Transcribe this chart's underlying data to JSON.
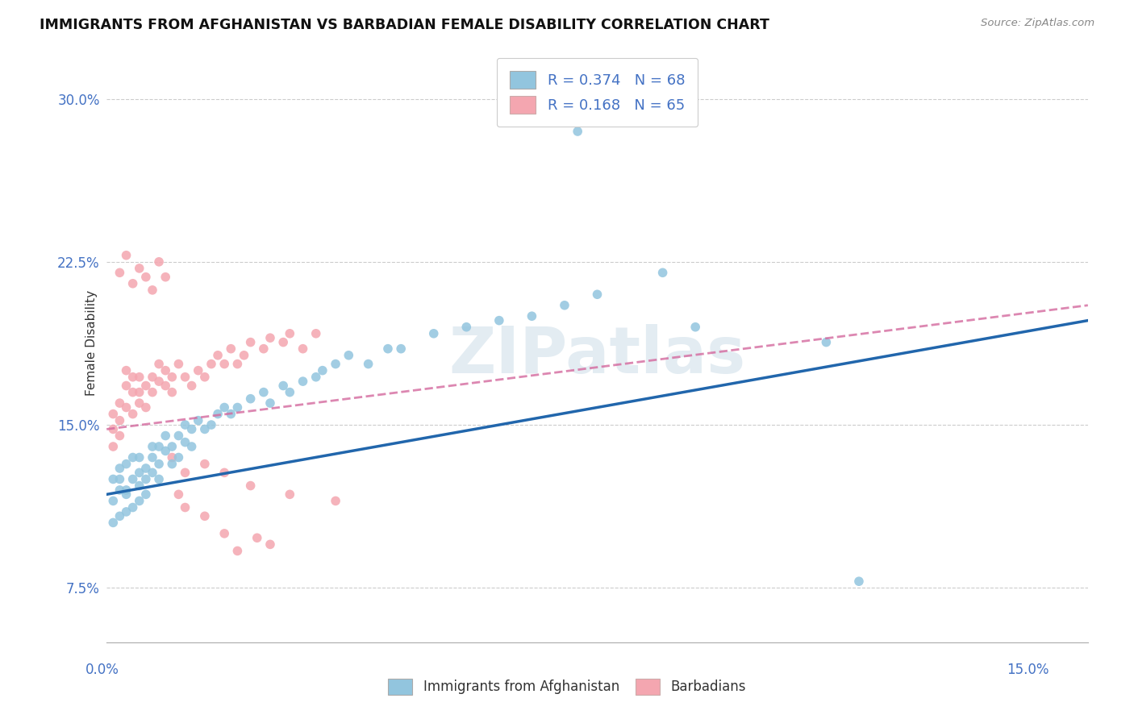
{
  "title": "IMMIGRANTS FROM AFGHANISTAN VS BARBADIAN FEMALE DISABILITY CORRELATION CHART",
  "source": "Source: ZipAtlas.com",
  "ylabel": "Female Disability",
  "y_ticks": [
    "7.5%",
    "15.0%",
    "22.5%",
    "30.0%"
  ],
  "y_tick_vals": [
    0.075,
    0.15,
    0.225,
    0.3
  ],
  "xlim": [
    0.0,
    0.15
  ],
  "ylim": [
    0.05,
    0.325
  ],
  "r_blue": 0.374,
  "n_blue": 68,
  "r_pink": 0.168,
  "n_pink": 65,
  "blue_color": "#92c5de",
  "pink_color": "#f4a6b0",
  "trendline_blue": "#2166ac",
  "trendline_pink": "#d4699e",
  "watermark": "ZIPatlas",
  "legend_label_blue": "Immigrants from Afghanistan",
  "legend_label_pink": "Barbadians",
  "blue_trendline_x": [
    0.0,
    0.15
  ],
  "blue_trendline_y": [
    0.118,
    0.198
  ],
  "pink_trendline_x": [
    0.0,
    0.15
  ],
  "pink_trendline_y": [
    0.148,
    0.205
  ],
  "blue_scatter_x": [
    0.001,
    0.001,
    0.001,
    0.002,
    0.002,
    0.002,
    0.002,
    0.003,
    0.003,
    0.003,
    0.003,
    0.004,
    0.004,
    0.004,
    0.005,
    0.005,
    0.005,
    0.005,
    0.006,
    0.006,
    0.006,
    0.007,
    0.007,
    0.007,
    0.008,
    0.008,
    0.008,
    0.009,
    0.009,
    0.01,
    0.01,
    0.011,
    0.011,
    0.012,
    0.012,
    0.013,
    0.013,
    0.014,
    0.015,
    0.016,
    0.017,
    0.018,
    0.019,
    0.02,
    0.022,
    0.024,
    0.025,
    0.027,
    0.028,
    0.03,
    0.032,
    0.033,
    0.035,
    0.037,
    0.04,
    0.043,
    0.045,
    0.05,
    0.055,
    0.06,
    0.065,
    0.07,
    0.075,
    0.085,
    0.115,
    0.072,
    0.09,
    0.11
  ],
  "blue_scatter_y": [
    0.115,
    0.125,
    0.105,
    0.125,
    0.12,
    0.13,
    0.108,
    0.12,
    0.132,
    0.118,
    0.11,
    0.135,
    0.125,
    0.112,
    0.128,
    0.122,
    0.135,
    0.115,
    0.13,
    0.125,
    0.118,
    0.14,
    0.128,
    0.135,
    0.132,
    0.14,
    0.125,
    0.138,
    0.145,
    0.14,
    0.132,
    0.145,
    0.135,
    0.142,
    0.15,
    0.148,
    0.14,
    0.152,
    0.148,
    0.15,
    0.155,
    0.158,
    0.155,
    0.158,
    0.162,
    0.165,
    0.16,
    0.168,
    0.165,
    0.17,
    0.172,
    0.175,
    0.178,
    0.182,
    0.178,
    0.185,
    0.185,
    0.192,
    0.195,
    0.198,
    0.2,
    0.205,
    0.21,
    0.22,
    0.078,
    0.285,
    0.195,
    0.188
  ],
  "pink_scatter_x": [
    0.001,
    0.001,
    0.001,
    0.002,
    0.002,
    0.002,
    0.003,
    0.003,
    0.003,
    0.004,
    0.004,
    0.004,
    0.005,
    0.005,
    0.005,
    0.006,
    0.006,
    0.007,
    0.007,
    0.008,
    0.008,
    0.009,
    0.009,
    0.01,
    0.01,
    0.011,
    0.012,
    0.013,
    0.014,
    0.015,
    0.016,
    0.017,
    0.018,
    0.019,
    0.02,
    0.021,
    0.022,
    0.024,
    0.025,
    0.027,
    0.028,
    0.03,
    0.032,
    0.002,
    0.003,
    0.004,
    0.005,
    0.006,
    0.007,
    0.008,
    0.009,
    0.01,
    0.011,
    0.012,
    0.015,
    0.018,
    0.02,
    0.023,
    0.025,
    0.012,
    0.015,
    0.018,
    0.022,
    0.028,
    0.035
  ],
  "pink_scatter_y": [
    0.148,
    0.14,
    0.155,
    0.152,
    0.16,
    0.145,
    0.168,
    0.158,
    0.175,
    0.165,
    0.155,
    0.172,
    0.16,
    0.172,
    0.165,
    0.168,
    0.158,
    0.172,
    0.165,
    0.17,
    0.178,
    0.175,
    0.168,
    0.172,
    0.165,
    0.178,
    0.172,
    0.168,
    0.175,
    0.172,
    0.178,
    0.182,
    0.178,
    0.185,
    0.178,
    0.182,
    0.188,
    0.185,
    0.19,
    0.188,
    0.192,
    0.185,
    0.192,
    0.22,
    0.228,
    0.215,
    0.222,
    0.218,
    0.212,
    0.225,
    0.218,
    0.135,
    0.118,
    0.112,
    0.108,
    0.1,
    0.092,
    0.098,
    0.095,
    0.128,
    0.132,
    0.128,
    0.122,
    0.118,
    0.115
  ]
}
